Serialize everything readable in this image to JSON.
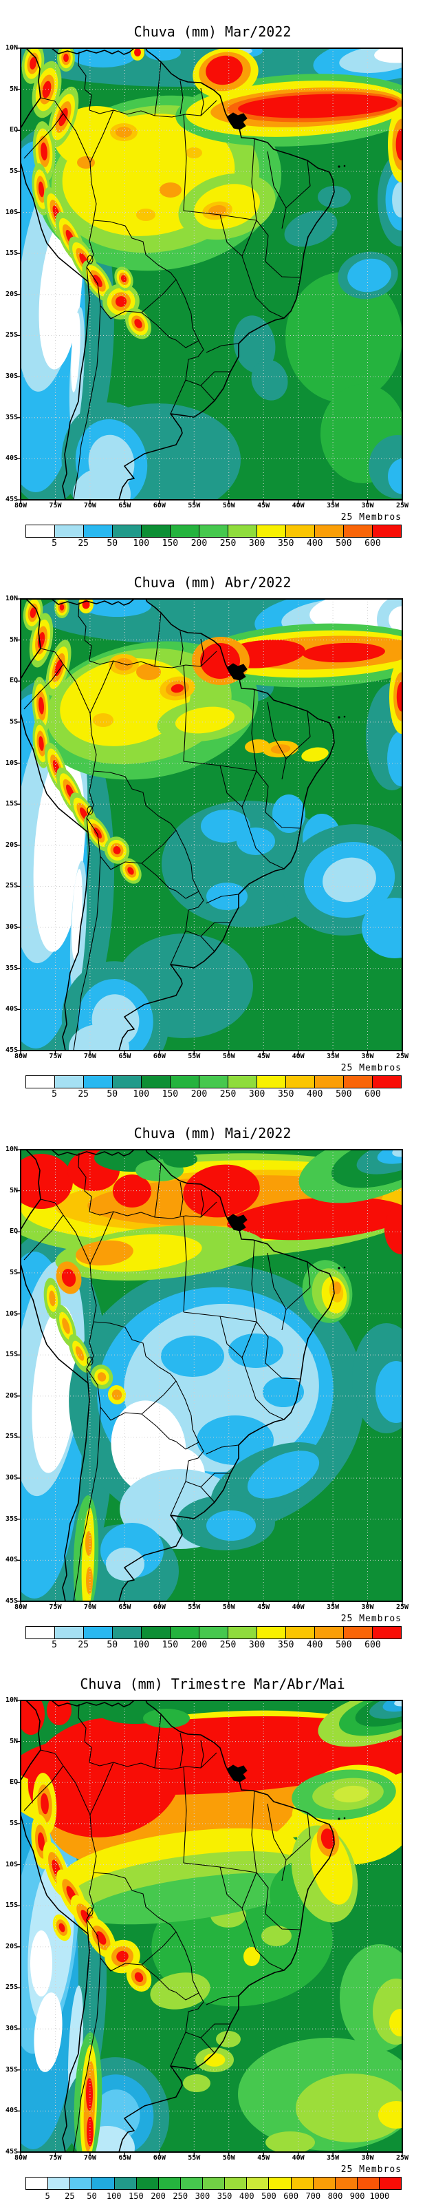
{
  "figure": {
    "kind": "ensemble precipitation forecast maps",
    "region_lon_labels": [
      "80W",
      "75W",
      "70W",
      "65W",
      "60W",
      "55W",
      "50W",
      "45W",
      "40W",
      "35W",
      "30W",
      "25W"
    ],
    "region_lat_labels": [
      "10N",
      "5N",
      "EQ",
      "5S",
      "10S",
      "15S",
      "20S",
      "25S",
      "30S",
      "35S",
      "40S",
      "45S"
    ]
  },
  "panels": [
    {
      "title": "Chuva (mm) Mar/2022",
      "members_label": "25 Membros",
      "lat_labels": [
        "10N",
        "5N",
        "EQ",
        "5S",
        "10S",
        "15S",
        "20S",
        "25S",
        "30S",
        "35S",
        "40S",
        "45S"
      ],
      "lon_labels": [
        "80W",
        "75W",
        "70W",
        "65W",
        "60W",
        "55W",
        "50W",
        "45W",
        "40W",
        "35W",
        "30W",
        "25W"
      ],
      "colorbar": {
        "labels": [
          "5",
          "25",
          "50",
          "100",
          "150",
          "200",
          "250",
          "300",
          "350",
          "400",
          "500",
          "600"
        ],
        "colors": [
          "#ffffff",
          "#a5e0f3",
          "#29b8f0",
          "#219a8a",
          "#0d8f35",
          "#25b33e",
          "#46c84e",
          "#8fdc3c",
          "#f8f000",
          "#fbc501",
          "#fa9e07",
          "#f96508",
          "#f80d06"
        ]
      }
    },
    {
      "title": "Chuva (mm) Abr/2022",
      "members_label": "25 Membros",
      "lat_labels": [
        "10N",
        "5N",
        "EQ",
        "5S",
        "10S",
        "15S",
        "20S",
        "25S",
        "30S",
        "35S",
        "40S",
        "45S"
      ],
      "lon_labels": [
        "80W",
        "75W",
        "70W",
        "65W",
        "60W",
        "55W",
        "50W",
        "45W",
        "40W",
        "35W",
        "30W",
        "25W"
      ],
      "colorbar": {
        "labels": [
          "5",
          "25",
          "50",
          "100",
          "150",
          "200",
          "250",
          "300",
          "350",
          "400",
          "500",
          "600"
        ],
        "colors": [
          "#ffffff",
          "#a5e0f3",
          "#29b8f0",
          "#219a8a",
          "#0d8f35",
          "#25b33e",
          "#46c84e",
          "#8fdc3c",
          "#f8f000",
          "#fbc501",
          "#fa9e07",
          "#f96508",
          "#f80d06"
        ]
      }
    },
    {
      "title": "Chuva (mm) Mai/2022",
      "members_label": "25 Membros",
      "lat_labels": [
        "10N",
        "5N",
        "EQ",
        "5S",
        "10S",
        "15S",
        "20S",
        "25S",
        "30S",
        "35S",
        "40S",
        "45S"
      ],
      "lon_labels": [
        "80W",
        "75W",
        "70W",
        "65W",
        "60W",
        "55W",
        "50W",
        "45W",
        "40W",
        "35W",
        "30W",
        "25W"
      ],
      "colorbar": {
        "labels": [
          "5",
          "25",
          "50",
          "100",
          "150",
          "200",
          "250",
          "300",
          "350",
          "400",
          "500",
          "600"
        ],
        "colors": [
          "#ffffff",
          "#a5e0f3",
          "#29b8f0",
          "#219a8a",
          "#0d8f35",
          "#25b33e",
          "#46c84e",
          "#8fdc3c",
          "#f8f000",
          "#fbc501",
          "#fa9e07",
          "#f96508",
          "#f80d06"
        ]
      }
    },
    {
      "title": "Chuva (mm) Trimestre Mar/Abr/Mai",
      "members_label": "25 Membros",
      "lat_labels": [
        "10N",
        "5N",
        "EQ",
        "5S",
        "10S",
        "15S",
        "20S",
        "25S",
        "30S",
        "35S",
        "40S",
        "45S"
      ],
      "lon_labels": [
        "80W",
        "75W",
        "70W",
        "65W",
        "60W",
        "55W",
        "50W",
        "45W",
        "40W",
        "35W",
        "30W",
        "25W"
      ],
      "colorbar": {
        "labels": [
          "5",
          "25",
          "50",
          "100",
          "150",
          "200",
          "250",
          "300",
          "350",
          "400",
          "500",
          "600",
          "700",
          "800",
          "900",
          "1000"
        ],
        "colors": [
          "#ffffff",
          "#b9e9f9",
          "#5cc9f2",
          "#21abdf",
          "#219a8a",
          "#0d8f35",
          "#25b33e",
          "#46c84e",
          "#71d145",
          "#9cdd3a",
          "#cdea38",
          "#f8f000",
          "#fbc501",
          "#fa9e07",
          "#f97c08",
          "#f95506",
          "#f80d06"
        ]
      }
    }
  ],
  "chart_data": [
    {
      "type": "heatmap",
      "title": "Chuva (mm) Mar/2022",
      "units": "mm",
      "x_ticks": [
        "80W",
        "75W",
        "70W",
        "65W",
        "60W",
        "55W",
        "50W",
        "45W",
        "40W",
        "35W",
        "30W",
        "25W"
      ],
      "y_ticks": [
        "10N",
        "5N",
        "EQ",
        "5S",
        "10S",
        "15S",
        "20S",
        "25S",
        "30S",
        "35S",
        "40S",
        "45S"
      ],
      "levels_mm": [
        5,
        25,
        50,
        100,
        150,
        200,
        250,
        300,
        350,
        400,
        500,
        600
      ],
      "palette": [
        "#ffffff",
        "#a5e0f3",
        "#29b8f0",
        "#219a8a",
        "#0d8f35",
        "#25b33e",
        "#46c84e",
        "#8fdc3c",
        "#f8f000",
        "#fbc501",
        "#fa9e07",
        "#f96508",
        "#f80d06"
      ],
      "ensemble_members": 25,
      "legend": "25 Membros"
    },
    {
      "type": "heatmap",
      "title": "Chuva (mm) Abr/2022",
      "units": "mm",
      "x_ticks": [
        "80W",
        "75W",
        "70W",
        "65W",
        "60W",
        "55W",
        "50W",
        "45W",
        "40W",
        "35W",
        "30W",
        "25W"
      ],
      "y_ticks": [
        "10N",
        "5N",
        "EQ",
        "5S",
        "10S",
        "15S",
        "20S",
        "25S",
        "30S",
        "35S",
        "40S",
        "45S"
      ],
      "levels_mm": [
        5,
        25,
        50,
        100,
        150,
        200,
        250,
        300,
        350,
        400,
        500,
        600
      ],
      "palette": [
        "#ffffff",
        "#a5e0f3",
        "#29b8f0",
        "#219a8a",
        "#0d8f35",
        "#25b33e",
        "#46c84e",
        "#8fdc3c",
        "#f8f000",
        "#fbc501",
        "#fa9e07",
        "#f96508",
        "#f80d06"
      ],
      "ensemble_members": 25,
      "legend": "25 Membros"
    },
    {
      "type": "heatmap",
      "title": "Chuva (mm) Mai/2022",
      "units": "mm",
      "x_ticks": [
        "80W",
        "75W",
        "70W",
        "65W",
        "60W",
        "55W",
        "50W",
        "45W",
        "40W",
        "35W",
        "30W",
        "25W"
      ],
      "y_ticks": [
        "10N",
        "5N",
        "EQ",
        "5S",
        "10S",
        "15S",
        "20S",
        "25S",
        "30S",
        "35S",
        "40S",
        "45S"
      ],
      "levels_mm": [
        5,
        25,
        50,
        100,
        150,
        200,
        250,
        300,
        350,
        400,
        500,
        600
      ],
      "palette": [
        "#ffffff",
        "#a5e0f3",
        "#29b8f0",
        "#219a8a",
        "#0d8f35",
        "#25b33e",
        "#46c84e",
        "#8fdc3c",
        "#f8f000",
        "#fbc501",
        "#fa9e07",
        "#f96508",
        "#f80d06"
      ],
      "ensemble_members": 25,
      "legend": "25 Membros"
    },
    {
      "type": "heatmap",
      "title": "Chuva (mm) Trimestre Mar/Abr/Mai",
      "units": "mm",
      "x_ticks": [
        "80W",
        "75W",
        "70W",
        "65W",
        "60W",
        "55W",
        "50W",
        "45W",
        "40W",
        "35W",
        "30W",
        "25W"
      ],
      "y_ticks": [
        "10N",
        "5N",
        "EQ",
        "5S",
        "10S",
        "15S",
        "20S",
        "25S",
        "30S",
        "35S",
        "40S",
        "45S"
      ],
      "levels_mm": [
        5,
        25,
        50,
        100,
        150,
        200,
        250,
        300,
        350,
        400,
        500,
        600,
        700,
        800,
        900,
        1000
      ],
      "palette": [
        "#ffffff",
        "#b9e9f9",
        "#5cc9f2",
        "#21abdf",
        "#219a8a",
        "#0d8f35",
        "#25b33e",
        "#46c84e",
        "#71d145",
        "#9cdd3a",
        "#cdea38",
        "#f8f000",
        "#fbc501",
        "#fa9e07",
        "#f97c08",
        "#f95506",
        "#f80d06"
      ],
      "ensemble_members": 25,
      "legend": "25 Membros"
    }
  ]
}
